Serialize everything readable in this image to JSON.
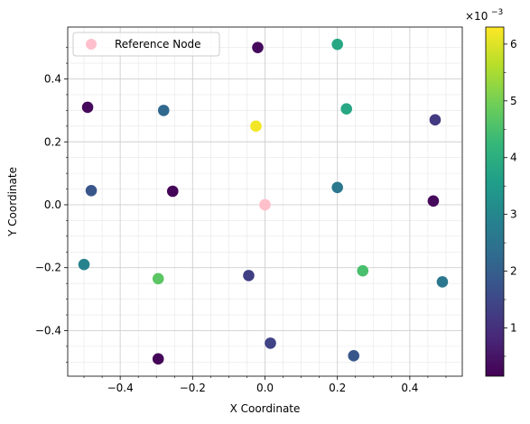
{
  "chart_data": {
    "type": "scatter",
    "xlabel": "X Coordinate",
    "ylabel": "Y Coordinate",
    "xlim": [
      -0.545,
      0.545
    ],
    "ylim": [
      -0.545,
      0.565
    ],
    "x_ticks": [
      -0.4,
      -0.2,
      0.0,
      0.2,
      0.4
    ],
    "x_tick_labels": [
      "−0.4",
      "−0.2",
      "0.0",
      "0.2",
      "0.4"
    ],
    "y_ticks": [
      -0.4,
      -0.2,
      0.0,
      0.2,
      0.4
    ],
    "y_tick_labels": [
      "−0.4",
      "−0.2",
      "0.0",
      "0.2",
      "0.4"
    ],
    "grid": true,
    "minor_grid": true,
    "legend": {
      "placement": "upper-left",
      "label": "Reference Node",
      "color": "#ffc0cb"
    },
    "reference_node": {
      "x": 0.0,
      "y": 0.0
    },
    "colormap": "viridis",
    "colorbar": {
      "range": [
        0.15,
        6.3
      ],
      "ticks": [
        1,
        2,
        3,
        4,
        5,
        6
      ],
      "tick_labels": [
        "1",
        "2",
        "3",
        "4",
        "5",
        "6"
      ],
      "scale_label": "×10",
      "scale_exponent": "−3"
    },
    "points": [
      {
        "x": -0.02,
        "y": 0.5,
        "v": 0.3
      },
      {
        "x": 0.2,
        "y": 0.51,
        "v": 3.8
      },
      {
        "x": -0.49,
        "y": 0.31,
        "v": 0.3
      },
      {
        "x": -0.28,
        "y": 0.3,
        "v": 2.2
      },
      {
        "x": 0.225,
        "y": 0.305,
        "v": 3.8
      },
      {
        "x": 0.47,
        "y": 0.27,
        "v": 1.2
      },
      {
        "x": -0.025,
        "y": 0.25,
        "v": 6.2
      },
      {
        "x": -0.48,
        "y": 0.045,
        "v": 1.8
      },
      {
        "x": -0.255,
        "y": 0.043,
        "v": 0.2
      },
      {
        "x": 0.2,
        "y": 0.055,
        "v": 2.6
      },
      {
        "x": 0.465,
        "y": 0.012,
        "v": 0.3
      },
      {
        "x": -0.5,
        "y": -0.19,
        "v": 2.9
      },
      {
        "x": -0.295,
        "y": -0.235,
        "v": 4.7
      },
      {
        "x": -0.045,
        "y": -0.225,
        "v": 1.3
      },
      {
        "x": 0.27,
        "y": -0.21,
        "v": 4.5
      },
      {
        "x": 0.49,
        "y": -0.245,
        "v": 2.6
      },
      {
        "x": 0.015,
        "y": -0.44,
        "v": 1.4
      },
      {
        "x": 0.245,
        "y": -0.48,
        "v": 1.8
      },
      {
        "x": -0.295,
        "y": -0.49,
        "v": 0.2
      }
    ]
  }
}
